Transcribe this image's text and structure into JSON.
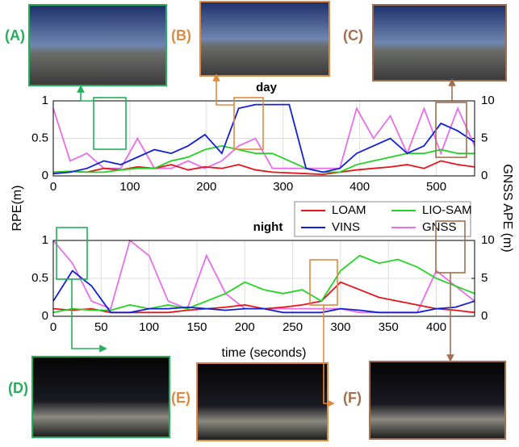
{
  "chart_data": [
    {
      "type": "line",
      "title": "day",
      "x": [
        0,
        22,
        44,
        66,
        88,
        110,
        132,
        154,
        176,
        198,
        220,
        242,
        264,
        286,
        308,
        330,
        352,
        374,
        396,
        418,
        440,
        462,
        484,
        506,
        528,
        550
      ],
      "xlim": [
        0,
        550
      ],
      "xticks": [
        0,
        100,
        200,
        300,
        400,
        500
      ],
      "ylim": [
        0,
        1
      ],
      "yticks": [
        0,
        0.5,
        1
      ],
      "y2lim": [
        0,
        10
      ],
      "y2ticks": [
        0,
        5,
        10
      ],
      "ylabel": "RPE(m)",
      "y2label": "GNSS APE (m)",
      "grid": true,
      "series": [
        {
          "color": "#e8141b",
          "values": [
            0.05,
            0.06,
            0.05,
            0.1,
            0.08,
            0.12,
            0.1,
            0.15,
            0.08,
            0.12,
            0.1,
            0.15,
            0.08,
            0.05,
            0.04,
            0.03,
            0.02,
            0.05,
            0.08,
            0.1,
            0.12,
            0.15,
            0.1,
            0.2,
            0.15,
            0.12
          ]
        },
        {
          "color": "#22d422",
          "values": [
            0.05,
            0.06,
            0.05,
            0.05,
            0.08,
            0.1,
            0.1,
            0.2,
            0.25,
            0.35,
            0.4,
            0.35,
            0.3,
            0.3,
            0.2,
            0.1,
            0.05,
            0.05,
            0.15,
            0.2,
            0.25,
            0.3,
            0.3,
            0.35,
            0.3,
            0.3
          ]
        },
        {
          "color": "#1020d8",
          "values": [
            0.03,
            0.05,
            0.1,
            0.2,
            0.15,
            0.25,
            0.35,
            0.3,
            0.4,
            0.55,
            0.3,
            0.9,
            0.95,
            0.95,
            0.95,
            0.1,
            0.05,
            0.1,
            0.3,
            0.4,
            0.5,
            0.3,
            0.4,
            0.7,
            0.6,
            0.45
          ]
        },
        {
          "color": "#e86ee8",
          "axis": "y2",
          "values": [
            9,
            2,
            3,
            1,
            1,
            5,
            1,
            1,
            2,
            1,
            2,
            4,
            5,
            1,
            1,
            1,
            1,
            1,
            9,
            5,
            8,
            3,
            9,
            3,
            9,
            4
          ]
        }
      ]
    },
    {
      "type": "line",
      "title": "night",
      "x": [
        0,
        20,
        40,
        60,
        80,
        100,
        120,
        140,
        160,
        180,
        200,
        220,
        240,
        260,
        280,
        300,
        320,
        340,
        360,
        380,
        400,
        420,
        440
      ],
      "xlim": [
        0,
        440
      ],
      "xticks": [
        0,
        50,
        100,
        150,
        200,
        250,
        300,
        350,
        400
      ],
      "ylim": [
        0,
        1
      ],
      "yticks": [
        0,
        0.5,
        1
      ],
      "y2lim": [
        0,
        10
      ],
      "y2ticks": [
        0,
        5,
        10
      ],
      "xlabel": "time (seconds)",
      "grid": true,
      "legend": "top-right",
      "series": [
        {
          "name": "LOAM",
          "color": "#e8141b",
          "values": [
            0.1,
            0.08,
            0.1,
            0.05,
            0.05,
            0.05,
            0.05,
            0.08,
            0.1,
            0.12,
            0.15,
            0.1,
            0.12,
            0.15,
            0.2,
            0.45,
            0.35,
            0.25,
            0.2,
            0.15,
            0.1,
            0.08,
            0.05
          ]
        },
        {
          "name": "LIO-SAM",
          "color": "#22d422",
          "values": [
            0.05,
            0.1,
            0.08,
            0.08,
            0.15,
            0.1,
            0.15,
            0.1,
            0.2,
            0.3,
            0.45,
            0.35,
            0.3,
            0.35,
            0.2,
            0.6,
            0.8,
            0.7,
            0.75,
            0.65,
            0.5,
            0.4,
            0.3
          ]
        },
        {
          "name": "VINS",
          "color": "#1020d8",
          "values": [
            0.2,
            0.6,
            0.4,
            0.05,
            0.05,
            0.1,
            0.1,
            0.12,
            0.1,
            0.08,
            0.1,
            0.1,
            0.05,
            0.05,
            0.05,
            0.1,
            0.08,
            0.05,
            0.05,
            0.05,
            0.1,
            0.12,
            0.2
          ]
        },
        {
          "name": "GNSS",
          "color": "#e86ee8",
          "axis": "y2",
          "values": [
            10,
            7,
            2,
            1,
            10,
            8,
            2,
            1,
            8,
            3,
            1,
            1,
            1,
            1,
            1,
            1,
            0.5,
            0.5,
            0.5,
            0.5,
            6,
            4,
            2
          ]
        }
      ]
    }
  ],
  "panels": [
    {
      "label": "(A)"
    },
    {
      "label": "(B)"
    },
    {
      "label": "(C)"
    },
    {
      "label": "(D)"
    },
    {
      "label": "(E)"
    },
    {
      "label": "(F)"
    }
  ]
}
